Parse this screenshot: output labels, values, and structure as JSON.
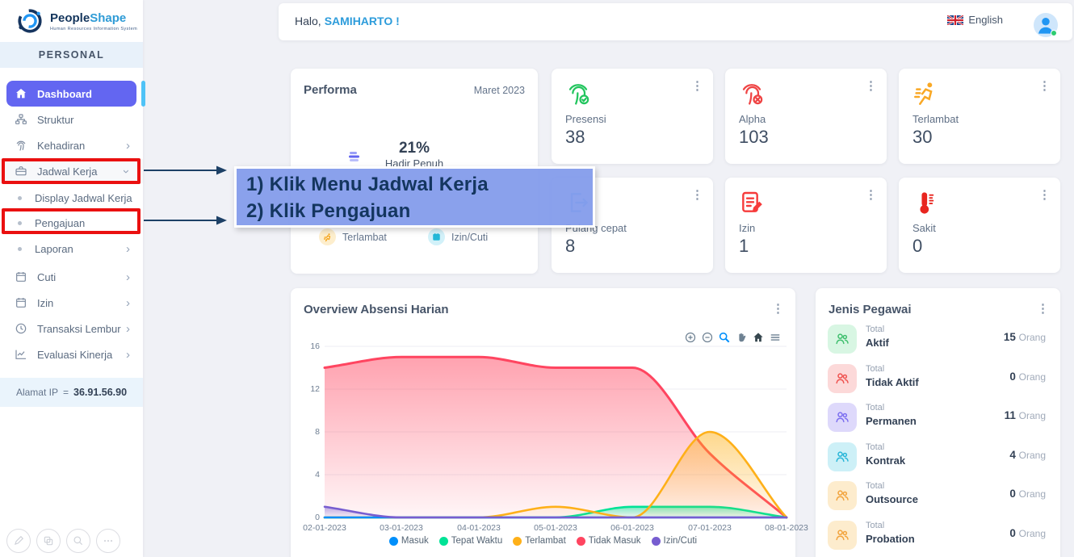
{
  "brand": {
    "name_left": "People",
    "name_right": "Shape",
    "tagline": "Human Resources Information System"
  },
  "sidebar": {
    "section_label": "PERSONAL",
    "items": [
      {
        "label": "Dashboard"
      },
      {
        "label": "Struktur"
      },
      {
        "label": "Kehadiran"
      },
      {
        "label": "Jadwal Kerja"
      },
      {
        "label": "Display Jadwal Kerja"
      },
      {
        "label": "Pengajuan"
      },
      {
        "label": "Laporan"
      },
      {
        "label": "Cuti"
      },
      {
        "label": "Izin"
      },
      {
        "label": "Transaksi Lembur"
      },
      {
        "label": "Evaluasi Kinerja"
      }
    ],
    "ip_label": "Alamat IP",
    "ip_equals": "=",
    "ip_value": "36.91.56.90"
  },
  "topbar": {
    "greeting_prefix": "Halo,",
    "greeting_name": "SAMIHARTO !",
    "language": "English"
  },
  "performa": {
    "title": "Performa",
    "period": "Maret 2023",
    "percent": "21%",
    "percent_label": "Hadir Penuh",
    "legend": [
      {
        "label": "Terlambat"
      },
      {
        "label": "Izin/Cuti"
      }
    ]
  },
  "stat_cards": [
    {
      "label": "Presensi",
      "value": "38"
    },
    {
      "label": "Alpha",
      "value": "103"
    },
    {
      "label": "Terlambat",
      "value": "30"
    },
    {
      "label": "Pulang cepat",
      "value": "8"
    },
    {
      "label": "Izin",
      "value": "1"
    },
    {
      "label": "Sakit",
      "value": "0"
    }
  ],
  "chart_card": {
    "title": "Overview Absensi Harian"
  },
  "chart_data": {
    "type": "area",
    "title": "Overview Absensi Harian",
    "x": [
      "02-01-2023",
      "03-01-2023",
      "04-01-2023",
      "05-01-2023",
      "06-01-2023",
      "07-01-2023",
      "08-01-2023"
    ],
    "series": [
      {
        "name": "Masuk",
        "color": "#008FFB",
        "values": [
          0,
          0,
          0,
          0,
          0,
          0,
          0
        ]
      },
      {
        "name": "Tepat Waktu",
        "color": "#00E396",
        "values": [
          0,
          0,
          0,
          0,
          1,
          1,
          0
        ]
      },
      {
        "name": "Terlambat",
        "color": "#FEB019",
        "values": [
          0,
          0,
          0,
          1,
          0,
          8,
          0
        ]
      },
      {
        "name": "Tidak Masuk",
        "color": "#FF4560",
        "values": [
          14,
          15,
          15,
          14,
          14,
          6,
          0
        ]
      },
      {
        "name": "Izin/Cuti",
        "color": "#775DD0",
        "values": [
          1,
          0,
          0,
          0,
          0,
          0,
          0
        ]
      }
    ],
    "ylim": [
      0,
      16
    ],
    "yticks": [
      0,
      4,
      8,
      12,
      16
    ],
    "xlabel": "",
    "ylabel": "",
    "grid": true,
    "legend_position": "bottom"
  },
  "jenis_pegawai": {
    "title": "Jenis Pegawai",
    "unit": "Orang",
    "rows": [
      {
        "prefix": "Total",
        "label": "Aktif",
        "count": "15"
      },
      {
        "prefix": "Total",
        "label": "Tidak Aktif",
        "count": "0"
      },
      {
        "prefix": "Total",
        "label": "Permanen",
        "count": "11"
      },
      {
        "prefix": "Total",
        "label": "Kontrak",
        "count": "4"
      },
      {
        "prefix": "Total",
        "label": "Outsource",
        "count": "0"
      },
      {
        "prefix": "Total",
        "label": "Probation",
        "count": "0"
      }
    ]
  },
  "annotation": {
    "step1": "1) Klik Menu Jadwal Kerja",
    "step2": "2) Klik Pengajuan"
  },
  "colors": {
    "accent_active": "#6366f1",
    "accent_strip": "#4fc3f7",
    "highlight_red": "#ea1010",
    "callout_bg": "#839BEB",
    "callout_text": "#14365f",
    "name_blue": "#2d9cdb"
  }
}
